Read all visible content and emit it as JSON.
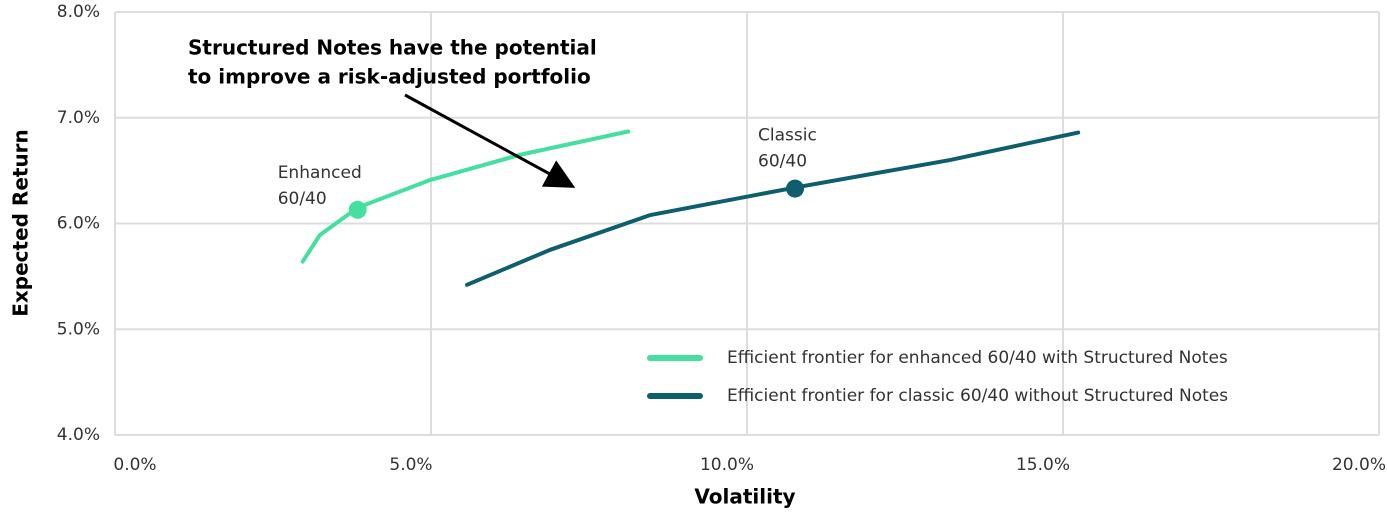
{
  "chart_data": {
    "type": "line",
    "annotation": [
      "Structured Notes have the potential",
      "to improve a risk-adjusted portfolio"
    ],
    "x_label": "Volatility",
    "y_label": "Expected Return",
    "xlim": [
      0,
      20
    ],
    "ylim": [
      4,
      8
    ],
    "xticks": [
      {
        "value": 0,
        "label": "0.0%"
      },
      {
        "value": 5,
        "label": "5.0%"
      },
      {
        "value": 10,
        "label": "10.0%"
      },
      {
        "value": 15,
        "label": "15.0%"
      },
      {
        "value": 20,
        "label": "20.0%"
      }
    ],
    "yticks": [
      {
        "value": 4,
        "label": "4.0%"
      },
      {
        "value": 5,
        "label": "5.0%"
      },
      {
        "value": 6,
        "label": "6.0%"
      },
      {
        "value": 7,
        "label": "7.0%"
      },
      {
        "value": 8,
        "label": "8.0%"
      }
    ],
    "grid": true,
    "legend": "lower right",
    "series": [
      {
        "name": "Efficient frontier for enhanced 60/40 with Structured Notes",
        "color": "#45e0a0",
        "x": [
          2.97,
          3.24,
          3.84,
          4.98,
          6.41,
          8.12
        ],
        "values": [
          5.64,
          5.89,
          6.15,
          6.41,
          6.65,
          6.87
        ]
      },
      {
        "name": "Efficient frontier for classic 60/40 without Structured Notes",
        "color": "#0e5f6e",
        "x": [
          5.57,
          6.88,
          8.47,
          10.76,
          13.21,
          15.24
        ],
        "values": [
          5.42,
          5.75,
          6.08,
          6.34,
          6.6,
          6.86
        ]
      }
    ],
    "points": [
      {
        "label": [
          "Enhanced",
          "60/40"
        ],
        "x": 3.84,
        "y": 6.13,
        "color": "#45e0a0"
      },
      {
        "label": [
          "Classic",
          "60/40"
        ],
        "x": 10.76,
        "y": 6.33,
        "color": "#0e5f6e"
      }
    ]
  }
}
